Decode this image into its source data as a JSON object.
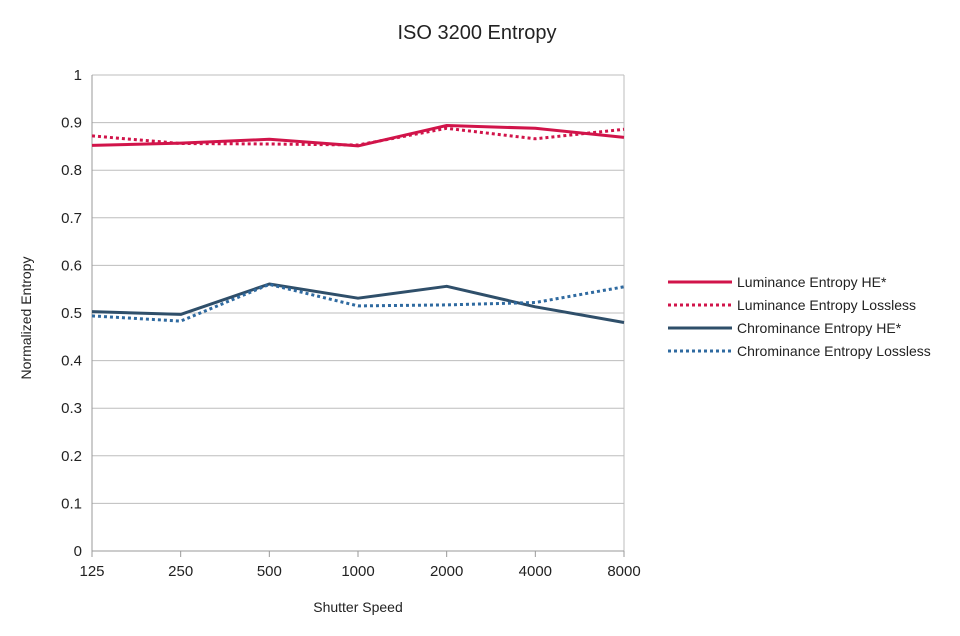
{
  "chart_data": {
    "type": "line",
    "title": "ISO 3200 Entropy",
    "xlabel": "Shutter Speed",
    "ylabel": "Normalized Entropy",
    "categories": [
      "125",
      "250",
      "500",
      "1000",
      "2000",
      "4000",
      "8000"
    ],
    "ylim": [
      0,
      1
    ],
    "yticks": [
      0,
      0.1,
      0.2,
      0.3,
      0.4,
      0.5,
      0.6,
      0.7,
      0.8,
      0.9,
      1
    ],
    "ytick_labels": [
      "0",
      "0.1",
      "0.2",
      "0.3",
      "0.4",
      "0.5",
      "0.6",
      "0.7",
      "0.8",
      "0.9",
      "1"
    ],
    "grid": true,
    "legend_position": "right",
    "series": [
      {
        "name": "Luminance Entropy HE*",
        "values": [
          0.852,
          0.857,
          0.865,
          0.851,
          0.894,
          0.888,
          0.869
        ],
        "color": "#d1144a",
        "style": "solid"
      },
      {
        "name": "Luminance Entropy Lossless",
        "values": [
          0.872,
          0.856,
          0.855,
          0.853,
          0.888,
          0.866,
          0.886
        ],
        "color": "#d1144a",
        "style": "dotted"
      },
      {
        "name": "Chrominance Entropy HE*",
        "values": [
          0.503,
          0.497,
          0.561,
          0.531,
          0.556,
          0.513,
          0.48
        ],
        "color": "#2f4f6a",
        "style": "solid"
      },
      {
        "name": "Chrominance Entropy Lossless",
        "values": [
          0.494,
          0.483,
          0.56,
          0.515,
          0.517,
          0.522,
          0.555
        ],
        "color": "#2f6aa0",
        "style": "dotted"
      }
    ]
  }
}
